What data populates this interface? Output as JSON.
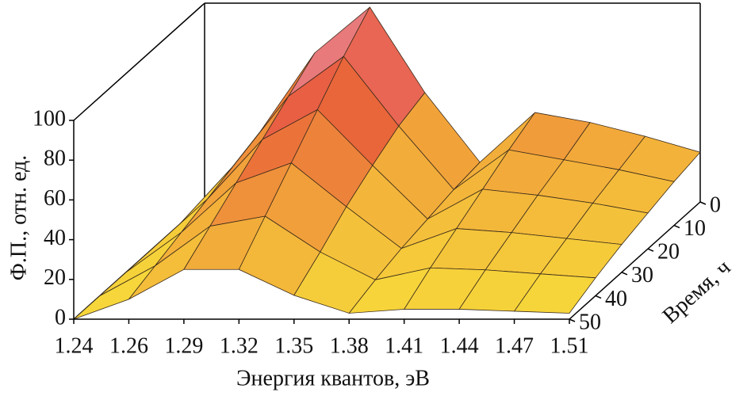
{
  "chart_data": {
    "type": "surface",
    "xlabel": "Энергия квантов, эВ",
    "ylabel": "Время, ч",
    "zlabel": "Ф.П., отн. ед.",
    "categories": [
      "1.24",
      "1.26",
      "1.29",
      "1.32",
      "1.35",
      "1.38",
      "1.41",
      "1.44",
      "1.47",
      "1.51"
    ],
    "y": [
      0,
      10,
      20,
      30,
      40,
      50
    ],
    "ylim": [
      0,
      50
    ],
    "yticks": [
      0,
      10,
      20,
      30,
      40,
      50
    ],
    "zlim": [
      0,
      100
    ],
    "zticks": [
      0,
      20,
      40,
      60,
      80,
      100
    ],
    "values": [
      [
        0,
        35,
        75,
        98,
        55,
        20,
        45,
        40,
        33,
        25
      ],
      [
        0,
        30,
        65,
        85,
        50,
        18,
        38,
        33,
        28,
        22
      ],
      [
        0,
        25,
        55,
        70,
        42,
        15,
        30,
        27,
        23,
        18
      ],
      [
        0,
        20,
        45,
        55,
        33,
        12,
        22,
        20,
        17,
        14
      ],
      [
        0,
        15,
        35,
        40,
        22,
        8,
        14,
        13,
        11,
        9
      ],
      [
        0,
        10,
        25,
        25,
        12,
        3,
        5,
        5,
        4,
        3
      ]
    ],
    "colormap": [
      "#f7e03a",
      "#f2a93a",
      "#e85a3a",
      "#e8a6d6"
    ]
  }
}
